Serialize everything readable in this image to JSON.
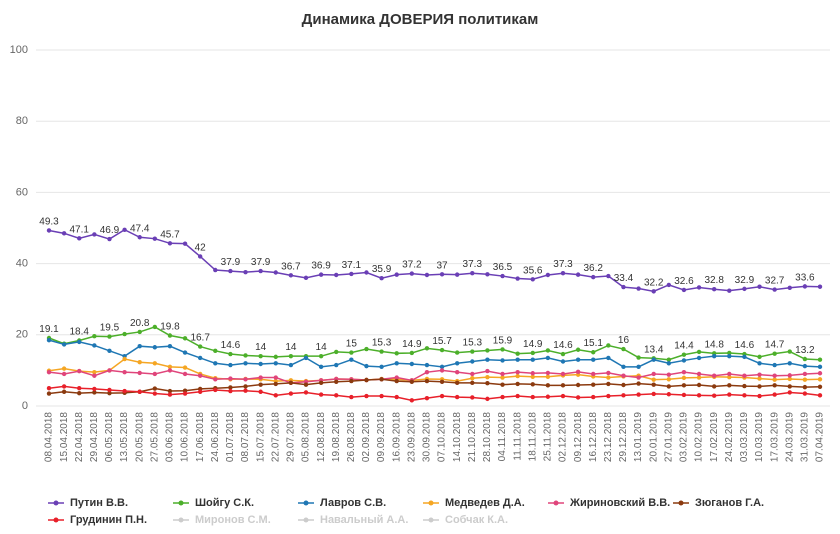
{
  "chart_data": {
    "type": "line",
    "title": "Динамика ДОВЕРИЯ политикам",
    "categories": [
      "08.04.2018",
      "15.04.2018",
      "22.04.2018",
      "29.04.2018",
      "06.05.2018",
      "13.05.2018",
      "20.05.2018",
      "27.05.2018",
      "03.06.2018",
      "10.06.2018",
      "17.06.2018",
      "24.06.2018",
      "01.07.2018",
      "08.07.2018",
      "15.07.2018",
      "22.07.2018",
      "29.07.2018",
      "05.08.2018",
      "12.08.2018",
      "19.08.2018",
      "26.08.2018",
      "02.09.2018",
      "09.09.2018",
      "16.09.2018",
      "23.09.2018",
      "30.09.2018",
      "07.10.2018",
      "14.10.2018",
      "21.10.2018",
      "28.10.2018",
      "04.11.2018",
      "11.11.2018",
      "18.11.2018",
      "25.11.2018",
      "02.12.2018",
      "09.12.2018",
      "16.12.2018",
      "23.12.2018",
      "29.12.2018",
      "13.01.2019",
      "20.01.2019",
      "27.01.2019",
      "03.02.2019",
      "10.02.2019",
      "17.02.2019",
      "24.02.2019",
      "03.03.2019",
      "10.03.2019",
      "17.03.2019",
      "24.03.2019",
      "31.03.2019",
      "07.04.2019"
    ],
    "ylim": [
      0,
      100
    ],
    "yticks": [
      0,
      20,
      40,
      60,
      80,
      100
    ],
    "grid": true,
    "legend": "bottom",
    "series": [
      {
        "name": "Путин В.В.",
        "color": "#6a3fb5",
        "values": [
          49.3,
          48.5,
          47.1,
          48.2,
          46.9,
          49.5,
          47.4,
          47.0,
          45.7,
          45.6,
          42,
          38.2,
          37.9,
          37.6,
          37.9,
          37.5,
          36.7,
          36.0,
          36.9,
          36.8,
          37.1,
          37.5,
          35.9,
          36.9,
          37.2,
          36.8,
          37,
          36.9,
          37.3,
          37.0,
          36.5,
          35.8,
          35.6,
          36.8,
          37.3,
          36.9,
          36.2,
          36.5,
          33.4,
          33.0,
          32.2,
          34.0,
          32.6,
          33.3,
          32.8,
          32.4,
          32.9,
          33.5,
          32.7,
          33.2,
          33.6,
          33.5
        ],
        "value_labels": [
          "49.3",
          null,
          "47.1",
          null,
          "46.9",
          null,
          "47.4",
          null,
          "45.7",
          null,
          "42",
          null,
          "37.9",
          null,
          "37.9",
          null,
          "36.7",
          null,
          "36.9",
          null,
          "37.1",
          null,
          "35.9",
          null,
          "37.2",
          null,
          "37",
          null,
          "37.3",
          null,
          "36.5",
          null,
          "35.6",
          null,
          "37.3",
          null,
          "36.2",
          null,
          "33.4",
          null,
          "32.2",
          null,
          "32.6",
          null,
          "32.8",
          null,
          "32.9",
          null,
          "32.7",
          null,
          "33.6",
          null
        ]
      },
      {
        "name": "Шойгу С.К.",
        "color": "#4caf2a",
        "values": [
          19.1,
          17.5,
          18.4,
          19.6,
          19.5,
          20.2,
          20.8,
          22.2,
          19.8,
          19.0,
          16.7,
          15.5,
          14.6,
          14.2,
          14,
          13.8,
          14,
          14.0,
          14,
          15.2,
          15,
          16.0,
          15.3,
          14.8,
          14.9,
          16.2,
          15.7,
          15.0,
          15.3,
          15.6,
          15.9,
          14.7,
          14.9,
          15.6,
          14.6,
          15.8,
          15.1,
          17.0,
          16,
          13.6,
          13.4,
          13.0,
          14.4,
          15.2,
          14.8,
          14.9,
          14.6,
          13.8,
          14.7,
          15.3,
          13.2,
          13.0
        ],
        "value_labels": [
          "19.1",
          null,
          "18.4",
          null,
          "19.5",
          null,
          "20.8",
          null,
          "19.8",
          null,
          "16.7",
          null,
          "14.6",
          null,
          "14",
          null,
          "14",
          null,
          "14",
          null,
          "15",
          null,
          "15.3",
          null,
          "14.9",
          null,
          "15.7",
          null,
          "15.3",
          null,
          "15.9",
          null,
          "14.9",
          null,
          "14.6",
          null,
          "15.1",
          null,
          "16",
          null,
          "13.4",
          null,
          "14.4",
          null,
          "14.8",
          null,
          "14.6",
          null,
          "14.7",
          null,
          "13.2",
          null
        ]
      },
      {
        "name": "Лавров С.В.",
        "color": "#1f77b4",
        "values": [
          18.5,
          17.3,
          18.0,
          17.0,
          15.5,
          14.0,
          16.8,
          16.5,
          16.8,
          15.0,
          13.5,
          12.0,
          11.5,
          12.0,
          11.8,
          12.0,
          11.5,
          13.5,
          11.0,
          11.5,
          13.0,
          11.2,
          11.0,
          12.0,
          11.8,
          11.5,
          11.0,
          12.0,
          12.5,
          13.0,
          12.8,
          13.0,
          13.0,
          13.5,
          12.5,
          13.0,
          13.0,
          13.5,
          11.0,
          11.0,
          13.0,
          12.0,
          12.8,
          13.5,
          14.0,
          14.0,
          13.8,
          12.0,
          11.5,
          12.0,
          11.2,
          11.0
        ]
      },
      {
        "name": "Медведев Д.А.",
        "color": "#f5a623",
        "values": [
          9.9,
          10.5,
          9.8,
          9.5,
          10.0,
          13.2,
          12.3,
          12.0,
          11.0,
          10.8,
          9.0,
          7.8,
          7.5,
          7.6,
          7.5,
          7.0,
          7.2,
          7.0,
          7.2,
          7.6,
          7.5,
          7.3,
          7.6,
          7.5,
          7.2,
          7.6,
          7.5,
          7.0,
          7.8,
          8.1,
          8.0,
          8.4,
          8.2,
          8.2,
          8.6,
          8.8,
          8.3,
          8.0,
          8.3,
          8.5,
          7.4,
          7.5,
          7.9,
          8.0,
          8.2,
          8.1,
          8.0,
          7.7,
          7.4,
          7.6,
          7.4,
          7.5
        ]
      },
      {
        "name": "Жириновский В.В.",
        "color": "#e0457b",
        "values": [
          9.5,
          9.0,
          9.8,
          8.5,
          10.0,
          9.5,
          9.3,
          9.0,
          10.0,
          9.0,
          8.5,
          7.5,
          7.7,
          7.5,
          8.0,
          8.0,
          6.5,
          6.8,
          7.2,
          7.6,
          7.5,
          7.3,
          7.5,
          8.0,
          7.2,
          9.5,
          10.0,
          9.5,
          9.0,
          9.8,
          9.0,
          9.5,
          9.2,
          9.3,
          9.0,
          9.6,
          9.0,
          9.3,
          8.5,
          8.0,
          9.0,
          8.8,
          9.5,
          9.0,
          8.5,
          9.0,
          8.5,
          8.8,
          8.5,
          8.6,
          9.0,
          9.2
        ]
      },
      {
        "name": "Зюганов Г.А.",
        "color": "#8b3a0f",
        "values": [
          3.5,
          4.0,
          3.6,
          3.8,
          3.6,
          3.7,
          4.0,
          4.9,
          4.2,
          4.3,
          4.8,
          5.0,
          5.2,
          5.5,
          6.0,
          6.2,
          6.5,
          6.0,
          6.5,
          6.8,
          7.0,
          7.3,
          7.5,
          7.0,
          6.8,
          7.0,
          6.8,
          6.5,
          6.5,
          6.4,
          6.0,
          6.2,
          6.1,
          5.8,
          5.8,
          5.9,
          6.0,
          6.2,
          5.9,
          6.3,
          6.0,
          5.5,
          5.8,
          5.9,
          5.5,
          5.8,
          5.6,
          5.5,
          5.8,
          5.5,
          5.3,
          5.4
        ]
      },
      {
        "name": "Грудинин П.Н.",
        "color": "#e8202a",
        "values": [
          5.0,
          5.5,
          5.0,
          4.8,
          4.5,
          4.2,
          4.0,
          3.5,
          3.2,
          3.5,
          4.0,
          4.5,
          4.2,
          4.3,
          4.0,
          3.0,
          3.5,
          3.8,
          3.2,
          3.0,
          2.5,
          2.8,
          2.8,
          2.5,
          1.6,
          2.2,
          2.8,
          2.5,
          2.4,
          2.0,
          2.5,
          2.8,
          2.5,
          2.6,
          2.8,
          2.4,
          2.5,
          2.8,
          3.0,
          3.2,
          3.4,
          3.3,
          3.1,
          3.0,
          2.9,
          3.2,
          3.0,
          2.8,
          3.2,
          3.8,
          3.5,
          3.0
        ]
      }
    ],
    "hidden_series": [
      "Миронов С.М.",
      "Навальный А.А.",
      "Собчак К.А."
    ]
  }
}
